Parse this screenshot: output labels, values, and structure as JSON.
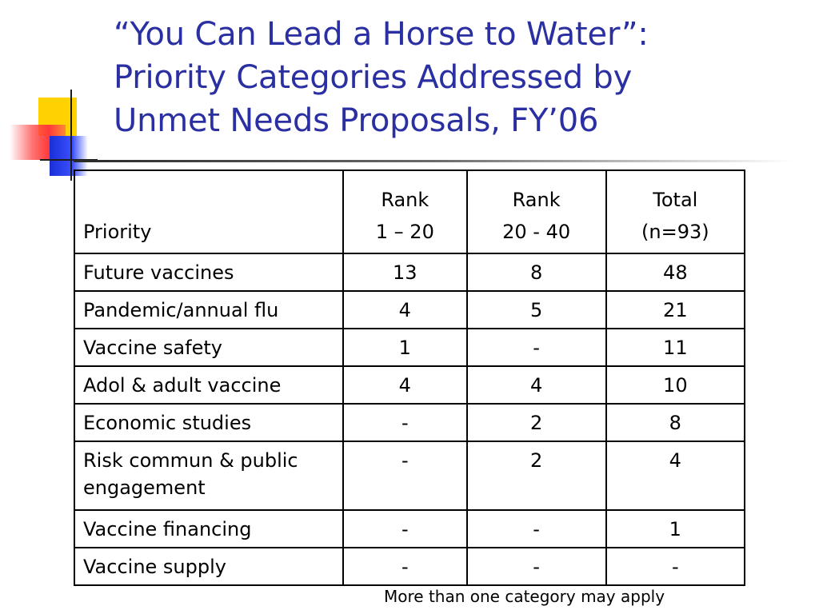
{
  "title": {
    "line1": "“You Can Lead a Horse to Water”:",
    "line2": "Priority Categories Addressed by",
    "line3": "Unmet Needs Proposals, FY’06"
  },
  "table": {
    "header": {
      "priority": "Priority",
      "rank1_line1": "Rank",
      "rank1_line2": "1 – 20",
      "rank2_line1": "Rank",
      "rank2_line2": "20 - 40",
      "total_line1": "Total",
      "total_line2": "(n=93)"
    },
    "rows": [
      {
        "priority": "Future vaccines",
        "rank1": "13",
        "rank2": "8",
        "total": "48"
      },
      {
        "priority": "Pandemic/annual flu",
        "rank1": "4",
        "rank2": "5",
        "total": "21"
      },
      {
        "priority": "Vaccine safety",
        "rank1": "1",
        "rank2": "-",
        "total": "11"
      },
      {
        "priority": "Adol & adult vaccine",
        "rank1": "4",
        "rank2": "4",
        "total": "10"
      },
      {
        "priority": "Economic studies",
        "rank1": "-",
        "rank2": "2",
        "total": "8"
      },
      {
        "priority_line1": "Risk commun & public",
        "priority_line2": "engagement",
        "rank1": "-",
        "rank2": "2",
        "total": "4"
      },
      {
        "priority": "Vaccine financing",
        "rank1": "-",
        "rank2": "-",
        "total": "1"
      },
      {
        "priority": "Vaccine supply",
        "rank1": "-",
        "rank2": "-",
        "total": "-"
      }
    ]
  },
  "footnote": "More than one category may apply",
  "colors": {
    "title": "#2a2fa2",
    "logo_yellow": "#ffd200",
    "logo_blue": "#1a2fd6",
    "logo_red": "#ff3a3a"
  }
}
